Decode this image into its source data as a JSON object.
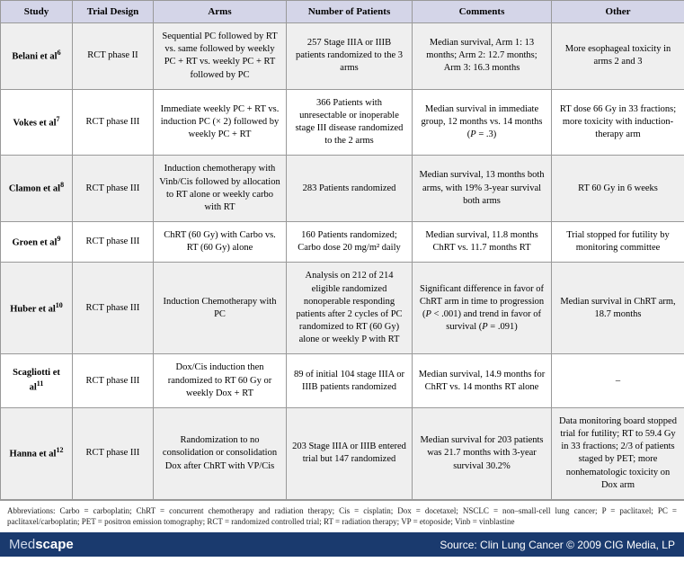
{
  "columns": [
    "Study",
    "Trial Design",
    "Arms",
    "Number of Patients",
    "Comments",
    "Other"
  ],
  "col_classes": [
    "col-study",
    "col-design",
    "col-arms",
    "col-num",
    "col-comments",
    "col-other"
  ],
  "rows": [
    {
      "study": "Belani et al",
      "sup": "6",
      "design": "RCT phase II",
      "arms": "Sequential PC followed by RT vs. same followed by weekly PC + RT vs. weekly PC + RT followed by PC",
      "num": "257 Stage IIIA or IIIB patients randomized to the 3 arms",
      "comments": "Median survival, Arm 1: 13 months; Arm 2: 12.7 months; Arm 3: 16.3 months",
      "other": "More esophageal toxicity in arms 2 and 3"
    },
    {
      "study": "Vokes et al",
      "sup": "7",
      "design": "RCT phase III",
      "arms": "Immediate weekly PC + RT vs. induction PC (× 2) followed by weekly PC + RT",
      "num": "366 Patients with unresectable or inoperable stage III disease randomized to the 2 arms",
      "comments": "Median survival in immediate group, 12 months vs. 14 months (P = .3)",
      "other": "RT dose 66 Gy in 33 fractions; more toxicity with induction-therapy arm"
    },
    {
      "study": "Clamon et al",
      "sup": "8",
      "design": "RCT phase III",
      "arms": "Induction chemotherapy with Vinb/Cis followed by allocation to RT alone or weekly carbo with RT",
      "num": "283 Patients randomized",
      "comments": "Median survival, 13 months both arms, with 19% 3-year survival both arms",
      "other": "RT 60 Gy in 6 weeks"
    },
    {
      "study": "Groen et al",
      "sup": "9",
      "design": "RCT phase III",
      "arms": "ChRT (60 Gy) with Carbo vs. RT (60 Gy) alone",
      "num": "160 Patients randomized; Carbo dose 20 mg/m² daily",
      "comments": "Median survival, 11.8 months ChRT vs. 11.7 months RT",
      "other": "Trial stopped for futility by monitoring committee"
    },
    {
      "study": "Huber et al",
      "sup": "10",
      "design": "RCT phase III",
      "arms": "Induction Chemotherapy with PC",
      "num": "Analysis on 212 of 214 eligible randomized nonoperable responding patients after 2 cycles of PC randomized to RT (60 Gy) alone or weekly P with RT",
      "comments": "Significant difference in favor of ChRT arm in time to progression (P < .001) and trend in favor of survival (P = .091)",
      "other": "Median survival in ChRT arm, 18.7 months"
    },
    {
      "study": "Scagliotti et al",
      "sup": "11",
      "design": "RCT phase III",
      "arms": "Dox/Cis induction then randomized to RT 60 Gy or weekly Dox + RT",
      "num": "89 of initial 104 stage IIIA or IIIB patients randomized",
      "comments": "Median survival, 14.9 months for ChRT vs. 14 months RT alone",
      "other": "–"
    },
    {
      "study": "Hanna et al",
      "sup": "12",
      "design": "RCT phase III",
      "arms": "Randomization to no consolidation or consolidation Dox after ChRT with VP/Cis",
      "num": "203 Stage IIIA or IIIB entered trial but 147 randomized",
      "comments": "Median survival for 203 patients was 21.7 months with 3-year survival 30.2%",
      "other": "Data monitoring board stopped trial for futility; RT to 59.4 Gy in 33 fractions; 2/3 of patients staged by PET; more nonhematologic toxicity on Dox arm"
    }
  ],
  "abbreviations": "Abbreviations: Carbo = carboplatin; ChRT = concurrent chemotherapy and radiation therapy; Cis = cisplatin; Dox = docetaxel; NSCLC = non–small-cell lung cancer; P = paclitaxel; PC = paclitaxel/carboplatin; PET = positron emission tomography; RCT = randomized controlled trial; RT = radiation therapy; VP = etoposide; Vinb = vinblastine",
  "footer": {
    "brand_light": "Med",
    "brand_bold": "scape",
    "source": "Source: Clin Lung Cancer © 2009 CIG Media, LP"
  },
  "colors": {
    "header_bg": "#d4d5e8",
    "row_odd": "#efefef",
    "row_even": "#ffffff",
    "border": "#999999",
    "footer_bg": "#1a3a6e",
    "footer_text": "#ffffff"
  },
  "typography": {
    "base_font": "Georgia, serif",
    "base_size_pt": 10.5,
    "header_size_pt": 11,
    "abbrev_size_pt": 9,
    "footer_font": "Arial, sans-serif"
  }
}
